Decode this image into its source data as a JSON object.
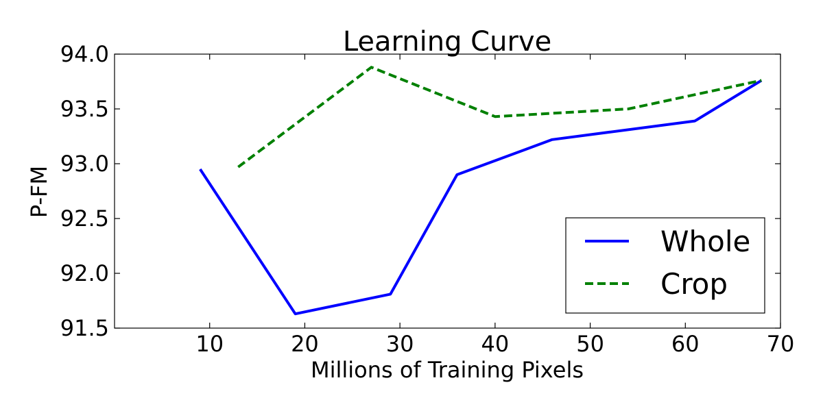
{
  "chart_data": {
    "type": "line",
    "title": "Learning Curve",
    "xlabel": "Millions of Training Pixels",
    "ylabel": "P-FM",
    "xlim": [
      0,
      70
    ],
    "ylim": [
      91.5,
      94.0
    ],
    "xticks": [
      10,
      20,
      30,
      40,
      50,
      60,
      70
    ],
    "xtick_labels": [
      "10",
      "20",
      "30",
      "40",
      "50",
      "60",
      "70"
    ],
    "yticks": [
      91.5,
      92.0,
      92.5,
      93.0,
      93.5,
      94.0
    ],
    "ytick_labels": [
      "91.5",
      "92.0",
      "92.5",
      "93.0",
      "93.5",
      "94.0"
    ],
    "grid": false,
    "legend": "lower-right",
    "series": [
      {
        "name": "Whole",
        "color": "#0000ff",
        "style": "solid",
        "x": [
          9,
          19,
          29,
          36,
          46,
          61,
          68
        ],
        "y": [
          92.95,
          91.63,
          91.81,
          92.9,
          93.22,
          93.39,
          93.76
        ]
      },
      {
        "name": "Crop",
        "color": "#008000",
        "style": "dashed",
        "x": [
          13,
          27,
          40,
          54,
          68
        ],
        "y": [
          92.97,
          93.88,
          93.43,
          93.5,
          93.76
        ]
      }
    ]
  }
}
